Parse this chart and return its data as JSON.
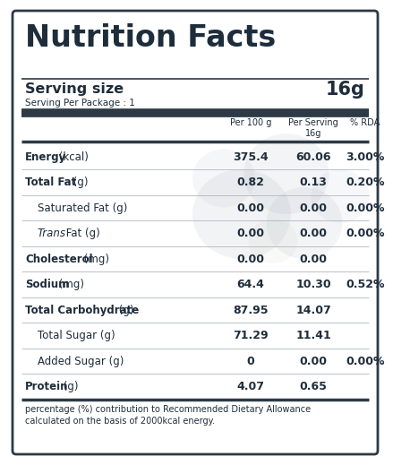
{
  "title": "Nutrition Facts",
  "serving_size_label": "Serving size",
  "serving_size_value": "16g",
  "serving_per_package": "Serving Per Package : 1",
  "col_headers": [
    "Per 100 g",
    "Per Serving\n16g",
    "% RDA"
  ],
  "rows": [
    {
      "label": "Energy",
      "unit": "(kcal)",
      "bold": true,
      "indent": false,
      "per100": "375.4",
      "per_serving": "60.06",
      "rda": "3.00%"
    },
    {
      "label": "Total Fat",
      "unit": "(g)",
      "bold": true,
      "indent": false,
      "per100": "0.82",
      "per_serving": "0.13",
      "rda": "0.20%"
    },
    {
      "label": "Saturated Fat",
      "unit": "(g)",
      "bold": false,
      "indent": true,
      "italic_label": false,
      "per100": "0.00",
      "per_serving": "0.00",
      "rda": "0.00%"
    },
    {
      "label": "Trans",
      "unit_prefix": "Fat (g)",
      "bold": false,
      "indent": true,
      "italic_label": true,
      "per100": "0.00",
      "per_serving": "0.00",
      "rda": "0.00%"
    },
    {
      "label": "Cholesterol",
      "unit": "(mg)",
      "bold": true,
      "indent": false,
      "italic_label": false,
      "per100": "0.00",
      "per_serving": "0.00",
      "rda": ""
    },
    {
      "label": "Sodium",
      "unit": "(mg)",
      "bold": true,
      "indent": false,
      "italic_label": false,
      "per100": "64.4",
      "per_serving": "10.30",
      "rda": "0.52%"
    },
    {
      "label": "Total Carbohydrate",
      "unit": "(g)",
      "bold": true,
      "indent": false,
      "italic_label": false,
      "per100": "87.95",
      "per_serving": "14.07",
      "rda": ""
    },
    {
      "label": "Total Sugar",
      "unit": "(g)",
      "bold": false,
      "indent": true,
      "italic_label": false,
      "per100": "71.29",
      "per_serving": "11.41",
      "rda": ""
    },
    {
      "label": "Added Sugar",
      "unit": "(g)",
      "bold": false,
      "indent": true,
      "italic_label": false,
      "per100": "0",
      "per_serving": "0.00",
      "rda": "0.00%"
    },
    {
      "label": "Protein",
      "unit": "(g)",
      "bold": true,
      "indent": false,
      "italic_label": false,
      "per100": "4.07",
      "per_serving": "0.65",
      "rda": ""
    }
  ],
  "footnote": "percentage (%) contribution to Recommended Dietary Allowance\ncalculated on the basis of 2000kcal energy.",
  "bg_color": "#ffffff",
  "border_color": "#2d3a45",
  "text_color": "#1e2d3b",
  "thick_line_color": "#2d3a45",
  "thin_line_color": "#b0b8c0"
}
